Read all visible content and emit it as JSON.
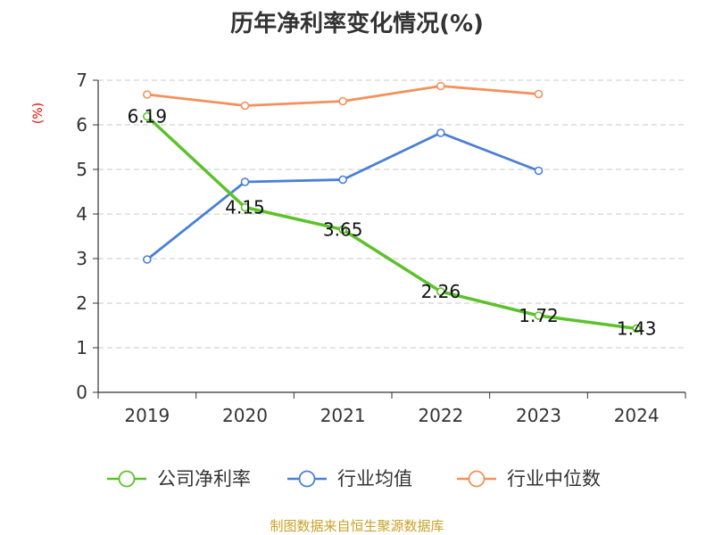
{
  "chart_data": {
    "type": "line",
    "title": "历年净利率变化情况(%)",
    "ylabel": "(%)",
    "xlabel": "",
    "categories": [
      "2019",
      "2020",
      "2021",
      "2022",
      "2023",
      "2024"
    ],
    "ylim": [
      0,
      7
    ],
    "yticks": [
      0,
      1,
      2,
      3,
      4,
      5,
      6,
      7
    ],
    "grid": true,
    "legend_position": "bottom",
    "series": [
      {
        "name": "公司净利率",
        "values": [
          6.19,
          4.15,
          3.65,
          2.26,
          1.72,
          1.43
        ],
        "color": "#5cc22a",
        "show_labels": true,
        "labels": [
          "6.19",
          "4.15",
          "3.65",
          "2.26",
          "1.72",
          "1.43"
        ]
      },
      {
        "name": "行业均值",
        "values": [
          2.98,
          4.72,
          4.77,
          5.82,
          4.97,
          null
        ],
        "color": "#4a7fd6",
        "show_labels": false
      },
      {
        "name": "行业中位数",
        "values": [
          6.68,
          6.43,
          6.53,
          6.87,
          6.69,
          null
        ],
        "color": "#f4905a",
        "show_labels": false
      }
    ]
  },
  "footer": {
    "source": "制图数据来自恒生聚源数据库"
  }
}
